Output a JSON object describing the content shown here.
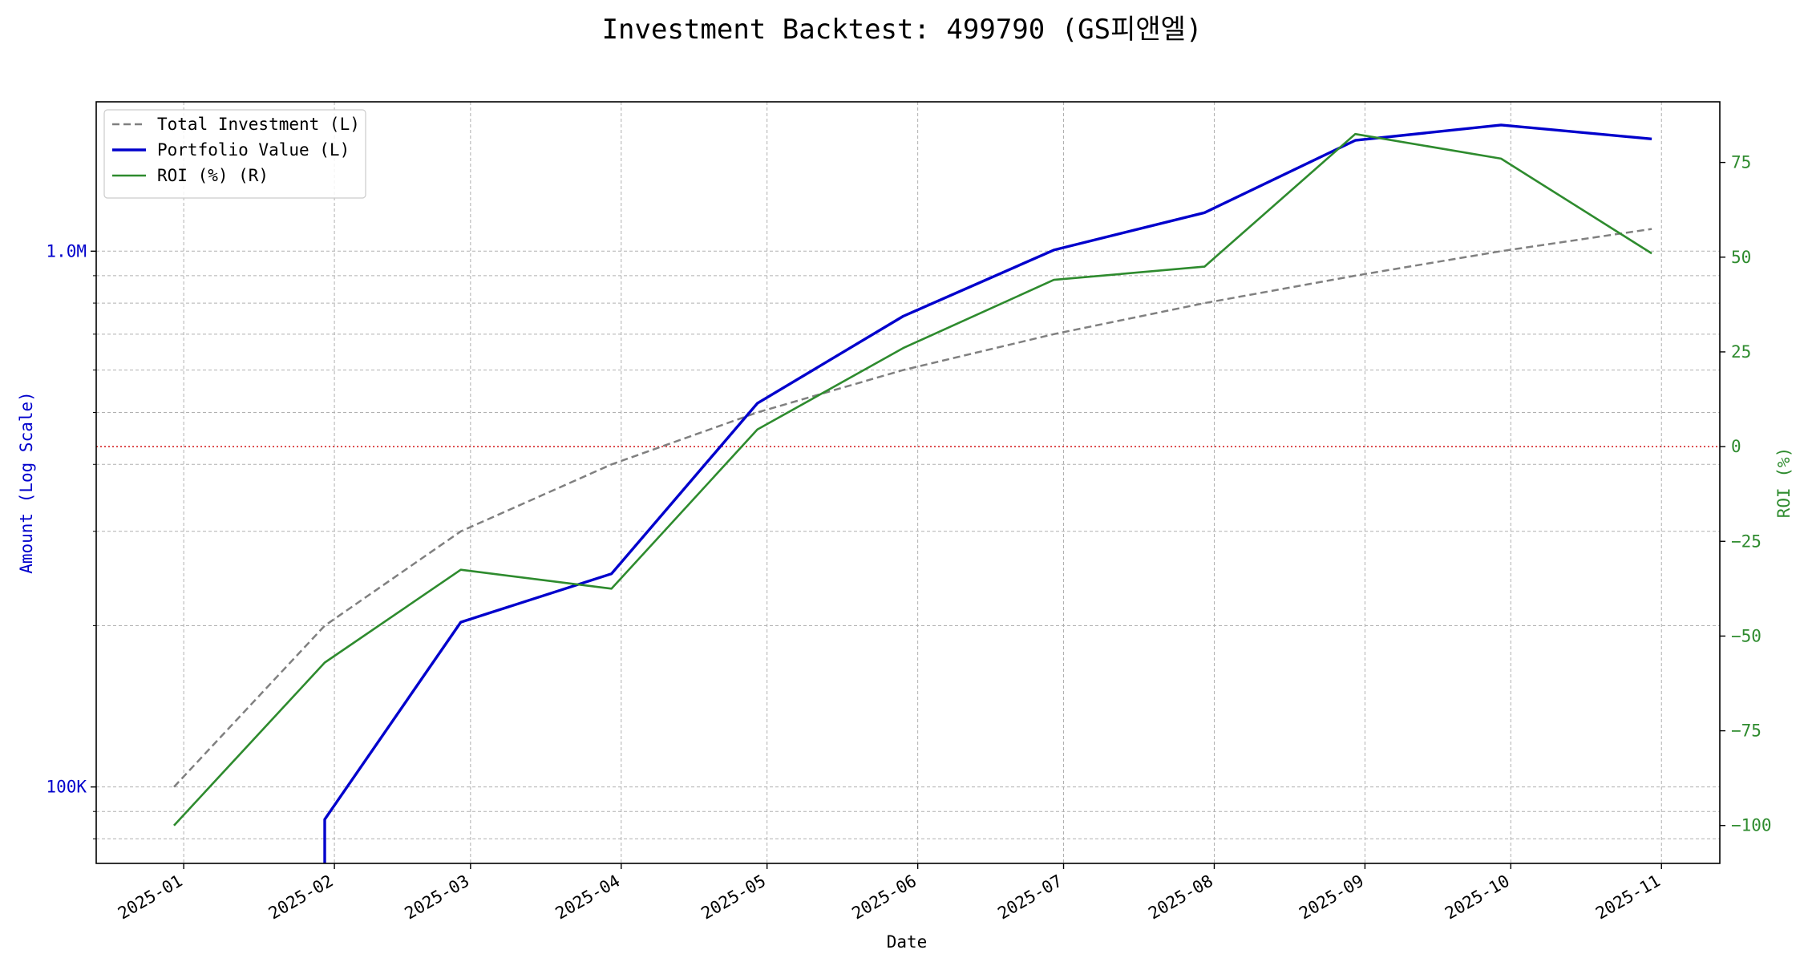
{
  "chart_data": {
    "type": "line",
    "title": "Investment Backtest: 499790 (GS피앤엘)",
    "xlabel": "Date",
    "ylabel_left": "Amount (Log Scale)",
    "ylabel_right": "ROI (%)",
    "left_scale": "log",
    "left_ylim": [
      72000,
      1900000
    ],
    "left_ticks": [
      {
        "value": 100000,
        "label": "100K"
      },
      {
        "value": 1000000,
        "label": "1.0M"
      }
    ],
    "right_ylim": [
      -110,
      91
    ],
    "right_ticks": [
      {
        "value": -100,
        "label": "−100"
      },
      {
        "value": -75,
        "label": "−75"
      },
      {
        "value": -50,
        "label": "−50"
      },
      {
        "value": -25,
        "label": "−25"
      },
      {
        "value": 0,
        "label": "0"
      },
      {
        "value": 25,
        "label": "25"
      },
      {
        "value": 50,
        "label": "50"
      },
      {
        "value": 75,
        "label": "75"
      }
    ],
    "x_ticks": [
      "2025-01",
      "2025-02",
      "2025-03",
      "2025-04",
      "2025-05",
      "2025-06",
      "2025-07",
      "2025-08",
      "2025-09",
      "2025-10",
      "2025-11"
    ],
    "x_range": [
      "2024-12-14",
      "2025-11-13"
    ],
    "grid": true,
    "legend_position": "top-left",
    "zero_line": {
      "value": 0,
      "axis": "right",
      "color": "#d62728",
      "style": "dotted"
    },
    "series": [
      {
        "name": "Total Investment (L)",
        "axis": "left",
        "color": "#808080",
        "style": "dashed",
        "x": [
          "2024-12-30",
          "2025-01-30",
          "2025-02-27",
          "2025-03-30",
          "2025-04-29",
          "2025-05-29",
          "2025-06-29",
          "2025-07-30",
          "2025-08-30",
          "2025-09-29",
          "2025-10-30"
        ],
        "values": [
          100000,
          200000,
          300000,
          400000,
          500000,
          600000,
          700000,
          800000,
          900000,
          1000000,
          1100000
        ]
      },
      {
        "name": "Portfolio Value (L)",
        "axis": "left",
        "color": "#0000cc",
        "style": "solid",
        "x": [
          "2025-01-30",
          "2025-01-30",
          "2025-02-27",
          "2025-03-30",
          "2025-04-29",
          "2025-05-29",
          "2025-06-29",
          "2025-07-30",
          "2025-08-30",
          "2025-09-29",
          "2025-10-30"
        ],
        "values": [
          72000,
          87000,
          203000,
          250000,
          520000,
          756000,
          1005000,
          1180000,
          1610000,
          1720000,
          1620000
        ]
      },
      {
        "name": "ROI (%) (R)",
        "axis": "right",
        "color": "#2e8b2e",
        "style": "solid",
        "x": [
          "2024-12-30",
          "2025-01-30",
          "2025-02-27",
          "2025-03-30",
          "2025-04-29",
          "2025-05-29",
          "2025-06-29",
          "2025-07-30",
          "2025-08-30",
          "2025-09-29",
          "2025-10-30"
        ],
        "values": [
          -100,
          -57,
          -32.5,
          -37.5,
          4.5,
          26,
          44,
          47.5,
          82.5,
          76,
          51
        ]
      }
    ]
  }
}
